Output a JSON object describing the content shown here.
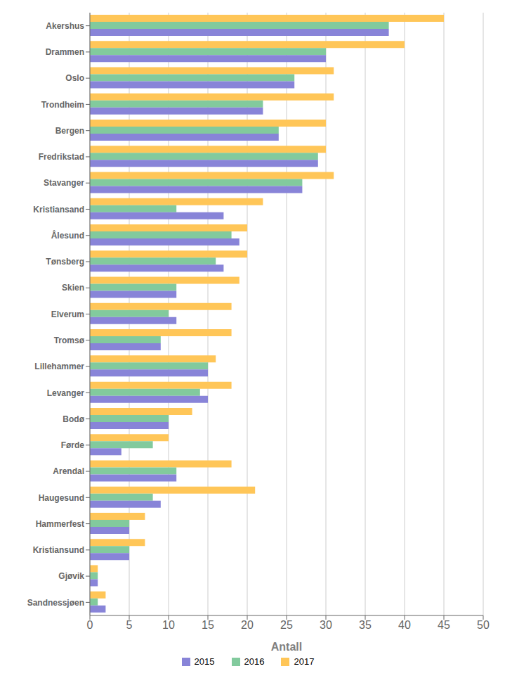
{
  "chart_data": {
    "type": "bar",
    "orientation": "horizontal",
    "categories": [
      "Akershus",
      "Drammen",
      "Oslo",
      "Trondheim",
      "Bergen",
      "Fredrikstad",
      "Stavanger",
      "Kristiansand",
      "Ålesund",
      "Tønsberg",
      "Skien",
      "Elverum",
      "Tromsø",
      "Lillehammer",
      "Levanger",
      "Bodø",
      "Førde",
      "Arendal",
      "Haugesund",
      "Hammerfest",
      "Kristiansund",
      "Gjøvik",
      "Sandnessjøen"
    ],
    "series": [
      {
        "name": "2015",
        "color": "#8884d8",
        "values": [
          38,
          30,
          26,
          22,
          24,
          29,
          27,
          17,
          19,
          17,
          11,
          11,
          9,
          15,
          15,
          10,
          4,
          11,
          9,
          5,
          5,
          1,
          2
        ]
      },
      {
        "name": "2016",
        "color": "#82ca9d",
        "values": [
          38,
          30,
          26,
          22,
          24,
          29,
          27,
          11,
          18,
          16,
          11,
          10,
          9,
          15,
          14,
          10,
          8,
          11,
          8,
          5,
          5,
          1,
          1
        ]
      },
      {
        "name": "2017",
        "color": "#ffc658",
        "values": [
          45,
          40,
          31,
          31,
          30,
          30,
          31,
          22,
          20,
          20,
          19,
          18,
          18,
          16,
          18,
          13,
          10,
          18,
          21,
          7,
          7,
          1,
          2
        ]
      }
    ],
    "xlabel": "Antall",
    "xlim": [
      0,
      50
    ],
    "xticks": [
      0,
      5,
      10,
      15,
      20,
      25,
      30,
      35,
      40,
      45,
      50
    ],
    "grid": true,
    "legend": "bottom"
  }
}
